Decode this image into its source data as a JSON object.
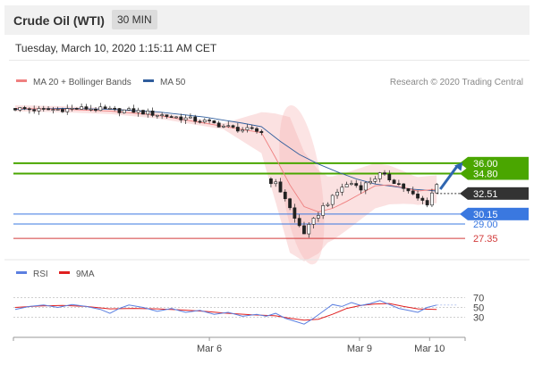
{
  "header": {
    "title": "Crude Oil (WTI)",
    "timeframe": "30 MIN",
    "datetime": "Tuesday, March 10, 2020 1:15:11 AM CET"
  },
  "attribution": "Research © 2020 Trading Central",
  "chart_data": [
    {
      "type": "candlestick",
      "legend": [
        {
          "name": "MA 20 + Bollinger Bands",
          "color": "#ef8080"
        },
        {
          "name": "MA 50",
          "color": "#2f5d9c"
        }
      ],
      "x_ticks": [
        "Mar 6",
        "Mar 9",
        "Mar 10"
      ],
      "y_range": [
        25,
        44.5
      ],
      "series_points": [
        [
          0,
          42.3
        ],
        [
          5,
          42.1
        ],
        [
          10,
          42.2
        ],
        [
          15,
          42.3
        ],
        [
          20,
          42.1
        ],
        [
          25,
          42.0
        ],
        [
          30,
          41.6
        ],
        [
          35,
          41.2
        ],
        [
          40,
          40.8
        ],
        [
          43,
          40.4
        ],
        [
          46,
          40.0
        ],
        [
          49,
          39.8
        ],
        [
          52,
          39.6
        ],
        [
          53,
          34.2
        ],
        [
          55,
          33.6
        ],
        [
          57,
          32.0
        ],
        [
          59,
          29.6
        ],
        [
          61,
          28.0
        ],
        [
          63,
          29.4
        ],
        [
          65,
          31.0
        ],
        [
          67,
          32.0
        ],
        [
          69,
          33.3
        ],
        [
          71,
          33.7
        ],
        [
          73,
          33.2
        ],
        [
          75,
          34.0
        ],
        [
          77,
          34.7
        ],
        [
          79,
          34.2
        ],
        [
          81,
          33.6
        ],
        [
          83,
          32.7
        ],
        [
          85,
          31.9
        ],
        [
          87,
          31.4
        ],
        [
          88,
          32.6
        ],
        [
          89,
          33.5
        ]
      ],
      "ma20": [
        [
          0,
          42.3
        ],
        [
          10,
          42.2
        ],
        [
          20,
          42.0
        ],
        [
          30,
          41.5
        ],
        [
          40,
          40.6
        ],
        [
          52,
          39.5
        ],
        [
          55,
          36.6
        ],
        [
          58,
          33.5
        ],
        [
          61,
          31.0
        ],
        [
          64,
          30.4
        ],
        [
          67,
          30.8
        ],
        [
          70,
          31.6
        ],
        [
          73,
          32.5
        ],
        [
          76,
          33.4
        ],
        [
          79,
          33.5
        ],
        [
          82,
          33.2
        ],
        [
          85,
          32.8
        ],
        [
          89,
          33.0
        ]
      ],
      "ma50": [
        [
          0,
          42.2
        ],
        [
          10,
          42.3
        ],
        [
          20,
          42.2
        ],
        [
          30,
          41.9
        ],
        [
          40,
          41.3
        ],
        [
          48,
          40.6
        ],
        [
          52,
          40.2
        ],
        [
          56,
          38.5
        ],
        [
          60,
          37.0
        ],
        [
          64,
          35.9
        ],
        [
          68,
          35.0
        ],
        [
          72,
          34.2
        ],
        [
          76,
          33.6
        ],
        [
          80,
          33.3
        ],
        [
          84,
          33.0
        ],
        [
          89,
          32.8
        ]
      ],
      "levels": [
        {
          "value": 36.0,
          "label": "36.00",
          "color": "#4aa600",
          "badge": true
        },
        {
          "value": 34.8,
          "label": "34.80",
          "color": "#4aa600",
          "badge": true
        },
        {
          "value": 32.51,
          "label": "32.51",
          "color": "#333333",
          "badge": true
        },
        {
          "value": 30.15,
          "label": "30.15",
          "color": "#3a78e0",
          "badge": true
        },
        {
          "value": 29.0,
          "label": "29.00",
          "color": "#3a78e0",
          "badge": false
        },
        {
          "value": 27.35,
          "label": "27.35",
          "color": "#d23a3a",
          "badge": false
        }
      ],
      "forecast": {
        "from": [
          89,
          33.0
        ],
        "to": [
          94.5,
          36.1
        ],
        "color": "#2f66b0"
      }
    },
    {
      "type": "line",
      "legend": [
        {
          "name": "RSI",
          "color": "#5b7fe0"
        },
        {
          "name": "9MA",
          "color": "#e02020"
        }
      ],
      "y_ticks": [
        70,
        50,
        30
      ],
      "y_range": [
        0,
        100
      ],
      "rsi": [
        [
          0,
          46
        ],
        [
          3,
          52
        ],
        [
          6,
          55
        ],
        [
          9,
          50
        ],
        [
          12,
          56
        ],
        [
          15,
          52
        ],
        [
          18,
          46
        ],
        [
          20,
          38
        ],
        [
          22,
          48
        ],
        [
          24,
          55
        ],
        [
          27,
          50
        ],
        [
          30,
          42
        ],
        [
          33,
          48
        ],
        [
          36,
          40
        ],
        [
          39,
          44
        ],
        [
          42,
          36
        ],
        [
          45,
          40
        ],
        [
          48,
          32
        ],
        [
          51,
          36
        ],
        [
          53,
          32
        ],
        [
          55,
          38
        ],
        [
          57,
          28
        ],
        [
          59,
          22
        ],
        [
          61,
          16
        ],
        [
          63,
          28
        ],
        [
          65,
          42
        ],
        [
          67,
          56
        ],
        [
          69,
          52
        ],
        [
          71,
          60
        ],
        [
          73,
          54
        ],
        [
          75,
          58
        ],
        [
          77,
          64
        ],
        [
          79,
          56
        ],
        [
          81,
          48
        ],
        [
          83,
          44
        ],
        [
          85,
          40
        ],
        [
          87,
          50
        ],
        [
          89,
          55
        ]
      ],
      "ma9": [
        [
          0,
          50
        ],
        [
          5,
          53
        ],
        [
          10,
          54
        ],
        [
          15,
          52
        ],
        [
          20,
          47
        ],
        [
          25,
          48
        ],
        [
          30,
          47
        ],
        [
          35,
          45
        ],
        [
          40,
          42
        ],
        [
          45,
          38
        ],
        [
          50,
          35
        ],
        [
          55,
          33
        ],
        [
          58,
          28
        ],
        [
          61,
          24
        ],
        [
          64,
          26
        ],
        [
          67,
          36
        ],
        [
          70,
          48
        ],
        [
          73,
          54
        ],
        [
          76,
          57
        ],
        [
          79,
          58
        ],
        [
          82,
          52
        ],
        [
          85,
          47
        ],
        [
          89,
          46
        ]
      ]
    }
  ]
}
